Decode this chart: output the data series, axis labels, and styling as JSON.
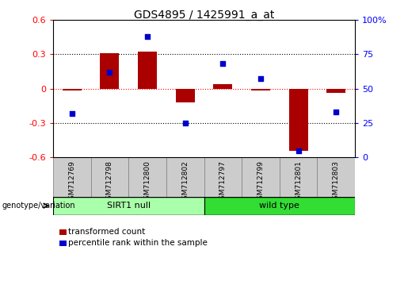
{
  "title": "GDS4895 / 1425991_a_at",
  "samples": [
    "GSM712769",
    "GSM712798",
    "GSM712800",
    "GSM712802",
    "GSM712797",
    "GSM712799",
    "GSM712801",
    "GSM712803"
  ],
  "transformed_count": [
    -0.02,
    0.31,
    0.32,
    -0.12,
    0.04,
    -0.02,
    -0.54,
    -0.04
  ],
  "percentile_rank": [
    32,
    62,
    88,
    25,
    68,
    57,
    5,
    33
  ],
  "groups": [
    {
      "label": "SIRT1 null",
      "start": 0,
      "end": 4,
      "color": "#aaffaa"
    },
    {
      "label": "wild type",
      "start": 4,
      "end": 8,
      "color": "#33dd33"
    }
  ],
  "bar_color": "#aa0000",
  "scatter_color": "#0000cc",
  "left_ylim": [
    -0.6,
    0.6
  ],
  "right_ylim": [
    0,
    100
  ],
  "left_yticks": [
    -0.6,
    -0.3,
    0.0,
    0.3,
    0.6
  ],
  "right_yticks": [
    0,
    25,
    50,
    75,
    100
  ],
  "left_yticklabels": [
    "-0.6",
    "-0.3",
    "0",
    "0.3",
    "0.6"
  ],
  "right_yticklabels": [
    "0",
    "25",
    "50",
    "75",
    "100%"
  ],
  "legend_items": [
    "transformed count",
    "percentile rank within the sample"
  ],
  "genotype_label": "genotype/variation",
  "hline_color": "red",
  "dotted_color": "black",
  "xtick_bg": "#cccccc",
  "background_color": "#ffffff"
}
